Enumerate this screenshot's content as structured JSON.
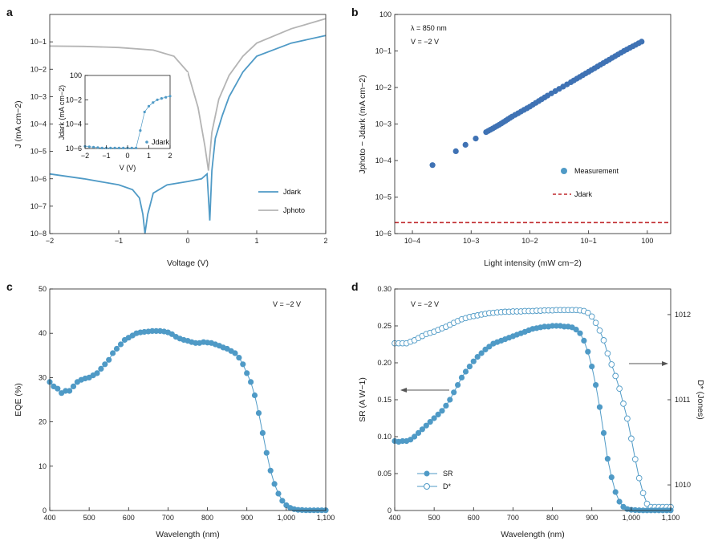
{
  "colors": {
    "blue": "#4f9ac6",
    "gray": "#b4b4b4",
    "darkblue": "#3f72b4",
    "red": "#c0282d"
  },
  "chart_data": [
    {
      "panel": "a",
      "type": "line",
      "xlabel": "Voltage (V)",
      "ylabel": "J (mA cm−2)",
      "xlim": [
        -2,
        2
      ],
      "ylim": [
        1e-08,
        1
      ],
      "yscale": "log",
      "xticks": [
        "−2",
        "−1",
        "0",
        "1",
        "2"
      ],
      "yticks": [
        "10−8",
        "10−7",
        "10−6",
        "10−5",
        "10−4",
        "10−3",
        "10−2",
        "10−1"
      ],
      "legend": {
        "position": "bottom-right",
        "entries": [
          "Jdark",
          "Jphoto"
        ]
      },
      "series": [
        {
          "name": "Jdark",
          "color": "#4f9ac6",
          "x": [
            -2,
            -1.5,
            -1,
            -0.8,
            -0.7,
            -0.65,
            -0.62,
            -0.58,
            -0.5,
            -0.3,
            0,
            0.2,
            0.28,
            0.32,
            0.35,
            0.4,
            0.5,
            0.6,
            0.8,
            1.0,
            1.5,
            2.0
          ],
          "y": [
            1.5e-06,
            1e-06,
            6e-07,
            4e-07,
            2e-07,
            5e-08,
            1e-08,
            5e-08,
            3e-07,
            6e-07,
            8e-07,
            1e-06,
            1.5e-06,
            3e-08,
            2e-06,
            3e-05,
            0.0002,
            0.001,
            0.008,
            0.03,
            0.09,
            0.17
          ]
        },
        {
          "name": "Jphoto",
          "color": "#b4b4b4",
          "x": [
            -2,
            -1.5,
            -1,
            -0.5,
            -0.2,
            0,
            0.15,
            0.25,
            0.3,
            0.35,
            0.45,
            0.6,
            0.8,
            1.0,
            1.5,
            2.0
          ],
          "y": [
            0.07,
            0.068,
            0.062,
            0.05,
            0.03,
            0.008,
            0.0004,
            1.5e-05,
            2e-06,
            5e-05,
            0.0008,
            0.006,
            0.03,
            0.09,
            0.3,
            0.7
          ]
        }
      ],
      "inset": {
        "xlabel": "V (V)",
        "ylabel": "Jdark (mA cm−2)",
        "xticks": [
          "−2",
          "−1",
          "0",
          "1",
          "2"
        ],
        "yticks": [
          "10−6",
          "10−4",
          "10−2",
          "100"
        ],
        "legend": "Jdark",
        "x": [
          -2,
          -1.8,
          -1.6,
          -1.4,
          -1.2,
          -1.0,
          -0.8,
          -0.6,
          -0.4,
          -0.2,
          0.0,
          0.2,
          0.4,
          0.6,
          0.8,
          1.0,
          1.2,
          1.4,
          1.6,
          1.8,
          2.0
        ],
        "y": [
          1.5e-06,
          1.4e-06,
          1.3e-06,
          1.2e-06,
          1.1e-06,
          1e-06,
          8e-07,
          6e-07,
          3e-07,
          1e-07,
          1e-08,
          3e-07,
          1e-06,
          3e-05,
          0.001,
          0.003,
          0.006,
          0.01,
          0.013,
          0.016,
          0.02
        ]
      }
    },
    {
      "panel": "b",
      "type": "scatter",
      "xlabel": "Light intensity (mW cm−2)",
      "ylabel": "Jphoto − Jdark (mA cm−2)",
      "xscale": "log",
      "yscale": "log",
      "xlim": [
        5e-05,
        2.5
      ],
      "ylim": [
        1e-06,
        1
      ],
      "xticks": [
        "10−4",
        "10−3",
        "10−2",
        "10−1",
        "100"
      ],
      "yticks": [
        "10−6",
        "10−5",
        "10−4",
        "10−3",
        "10−2",
        "10−1",
        "100"
      ],
      "annotations": [
        "λ = 850 nm",
        "V = −2 V"
      ],
      "legend": {
        "position": "bottom-right",
        "entries": [
          "Measurement",
          "Jdark"
        ]
      },
      "series": [
        {
          "name": "Measurement",
          "color": "#3f72b4",
          "x": [
            0.00022,
            0.00055,
            0.0008,
            0.0012,
            0.0018,
            0.003,
            0.005,
            0.01,
            0.02,
            0.05,
            0.1,
            0.2,
            0.4,
            0.8
          ],
          "y": [
            7.5e-05,
            0.00018,
            0.00027,
            0.0004,
            0.0006,
            0.00095,
            0.0016,
            0.003,
            0.006,
            0.014,
            0.027,
            0.052,
            0.1,
            0.18
          ]
        },
        {
          "name": "Jdark",
          "color": "#c0282d",
          "style": "dashed",
          "value": 2e-06
        }
      ]
    },
    {
      "panel": "c",
      "type": "line",
      "xlabel": "Wavelength (nm)",
      "ylabel": "EQE (%)",
      "xlim": [
        400,
        1100
      ],
      "ylim": [
        0,
        50
      ],
      "xticks": [
        "400",
        "500",
        "600",
        "700",
        "800",
        "900",
        "1,000",
        "1,100"
      ],
      "yticks": [
        "0",
        "10",
        "20",
        "30",
        "40",
        "50"
      ],
      "annotations": [
        "V = −2 V"
      ],
      "series": [
        {
          "name": "EQE",
          "color": "#4f9ac6",
          "x": [
            400,
            410,
            420,
            430,
            440,
            450,
            460,
            470,
            480,
            490,
            500,
            510,
            520,
            530,
            540,
            550,
            560,
            570,
            580,
            590,
            600,
            610,
            620,
            630,
            640,
            650,
            660,
            670,
            680,
            690,
            700,
            710,
            720,
            730,
            740,
            750,
            760,
            770,
            780,
            790,
            800,
            810,
            820,
            830,
            840,
            850,
            860,
            870,
            880,
            890,
            900,
            910,
            920,
            930,
            940,
            950,
            960,
            970,
            980,
            990,
            1000,
            1010,
            1020,
            1030,
            1040,
            1050,
            1060,
            1070,
            1080,
            1090,
            1100
          ],
          "y": [
            29.0,
            28.0,
            27.5,
            26.5,
            27.0,
            27.0,
            28.0,
            29.0,
            29.5,
            29.8,
            30.0,
            30.5,
            31.0,
            32.0,
            33.0,
            34.0,
            35.5,
            36.5,
            37.5,
            38.5,
            39.0,
            39.5,
            40.0,
            40.2,
            40.3,
            40.4,
            40.5,
            40.5,
            40.5,
            40.4,
            40.2,
            39.8,
            39.2,
            38.8,
            38.5,
            38.3,
            38.0,
            37.8,
            37.8,
            38.0,
            37.9,
            37.8,
            37.5,
            37.2,
            36.8,
            36.5,
            36.0,
            35.5,
            34.5,
            33.0,
            31.0,
            29.0,
            26.0,
            22.0,
            17.5,
            13.0,
            9.0,
            6.0,
            3.8,
            2.2,
            1.2,
            0.6,
            0.3,
            0.15,
            0.1,
            0.05,
            0.05,
            0.05,
            0.05,
            0.05,
            0.05
          ]
        }
      ]
    },
    {
      "panel": "d",
      "type": "line",
      "xlabel": "Wavelength (nm)",
      "ylabel": "SR (A W−1)",
      "ylabel_right": "D* (Jones)",
      "xlim": [
        400,
        1100
      ],
      "ylim": [
        0,
        0.3
      ],
      "xticks": [
        "400",
        "500",
        "600",
        "700",
        "800",
        "900",
        "1,000",
        "1,100"
      ],
      "yticks": [
        "0",
        "0.05",
        "0.10",
        "0.15",
        "0.20",
        "0.25",
        "0.30"
      ],
      "yticks_right": [
        "1010",
        "1011",
        "1012"
      ],
      "annotations": [
        "V = −2 V"
      ],
      "legend": {
        "position": "bottom-left",
        "entries": [
          "SR",
          "D*"
        ]
      },
      "series": [
        {
          "name": "SR",
          "color": "#4f9ac6",
          "marker": "filled",
          "x": [
            400,
            410,
            420,
            430,
            440,
            450,
            460,
            470,
            480,
            490,
            500,
            510,
            520,
            530,
            540,
            550,
            560,
            570,
            580,
            590,
            600,
            610,
            620,
            630,
            640,
            650,
            660,
            670,
            680,
            690,
            700,
            710,
            720,
            730,
            740,
            750,
            760,
            770,
            780,
            790,
            800,
            810,
            820,
            830,
            840,
            850,
            860,
            870,
            880,
            890,
            900,
            910,
            920,
            930,
            940,
            950,
            960,
            970,
            980,
            990,
            1000,
            1010,
            1020,
            1030,
            1040,
            1050,
            1060,
            1070,
            1080,
            1090,
            1100
          ],
          "y": [
            0.094,
            0.093,
            0.094,
            0.094,
            0.096,
            0.1,
            0.105,
            0.11,
            0.115,
            0.12,
            0.125,
            0.13,
            0.135,
            0.142,
            0.15,
            0.16,
            0.17,
            0.18,
            0.188,
            0.195,
            0.202,
            0.208,
            0.213,
            0.218,
            0.222,
            0.226,
            0.228,
            0.23,
            0.232,
            0.234,
            0.236,
            0.238,
            0.24,
            0.242,
            0.244,
            0.246,
            0.247,
            0.248,
            0.249,
            0.249,
            0.25,
            0.25,
            0.25,
            0.249,
            0.249,
            0.248,
            0.245,
            0.24,
            0.23,
            0.215,
            0.195,
            0.17,
            0.14,
            0.105,
            0.07,
            0.045,
            0.025,
            0.012,
            0.005,
            0.002,
            0.001,
            0.0005,
            0.0003,
            0.0002,
            0.0002,
            0.0002,
            0.0002,
            0.0002,
            0.0002,
            0.0002,
            0.0002
          ]
        },
        {
          "name": "D*",
          "color": "#4f9ac6",
          "marker": "open",
          "axis": "right",
          "x": [
            400,
            410,
            420,
            430,
            440,
            450,
            460,
            470,
            480,
            490,
            500,
            510,
            520,
            530,
            540,
            550,
            560,
            570,
            580,
            590,
            600,
            610,
            620,
            630,
            640,
            650,
            660,
            670,
            680,
            690,
            700,
            710,
            720,
            730,
            740,
            750,
            760,
            770,
            780,
            790,
            800,
            810,
            820,
            830,
            840,
            850,
            860,
            870,
            880,
            890,
            900,
            910,
            920,
            930,
            940,
            950,
            960,
            970,
            980,
            990,
            1000,
            1010,
            1020,
            1030,
            1040,
            1050,
            1060,
            1070,
            1080,
            1090,
            1100
          ],
          "y": [
            460000000000.0,
            460000000000.0,
            460000000000.0,
            460000000000.0,
            480000000000.0,
            500000000000.0,
            530000000000.0,
            560000000000.0,
            590000000000.0,
            610000000000.0,
            630000000000.0,
            660000000000.0,
            690000000000.0,
            720000000000.0,
            760000000000.0,
            800000000000.0,
            840000000000.0,
            880000000000.0,
            910000000000.0,
            940000000000.0,
            960000000000.0,
            980000000000.0,
            1000000000000.0,
            1020000000000.0,
            1040000000000.0,
            1050000000000.0,
            1060000000000.0,
            1070000000000.0,
            1080000000000.0,
            1080000000000.0,
            1090000000000.0,
            1090000000000.0,
            1090000000000.0,
            1100000000000.0,
            1100000000000.0,
            1100000000000.0,
            1110000000000.0,
            1110000000000.0,
            1120000000000.0,
            1120000000000.0,
            1120000000000.0,
            1130000000000.0,
            1130000000000.0,
            1130000000000.0,
            1130000000000.0,
            1130000000000.0,
            1130000000000.0,
            1120000000000.0,
            1100000000000.0,
            1050000000000.0,
            950000000000.0,
            800000000000.0,
            650000000000.0,
            500000000000.0,
            350000000000.0,
            260000000000.0,
            190000000000.0,
            135000000000.0,
            90000000000.0,
            60000000000.0,
            35000000000.0,
            20000000000.0,
            12000000000.0,
            8000000000.0,
            6000000000.0,
            5500000000.0,
            5500000000.0,
            5500000000.0,
            5500000000.0,
            5500000000.0,
            5500000000.0
          ]
        }
      ]
    }
  ]
}
